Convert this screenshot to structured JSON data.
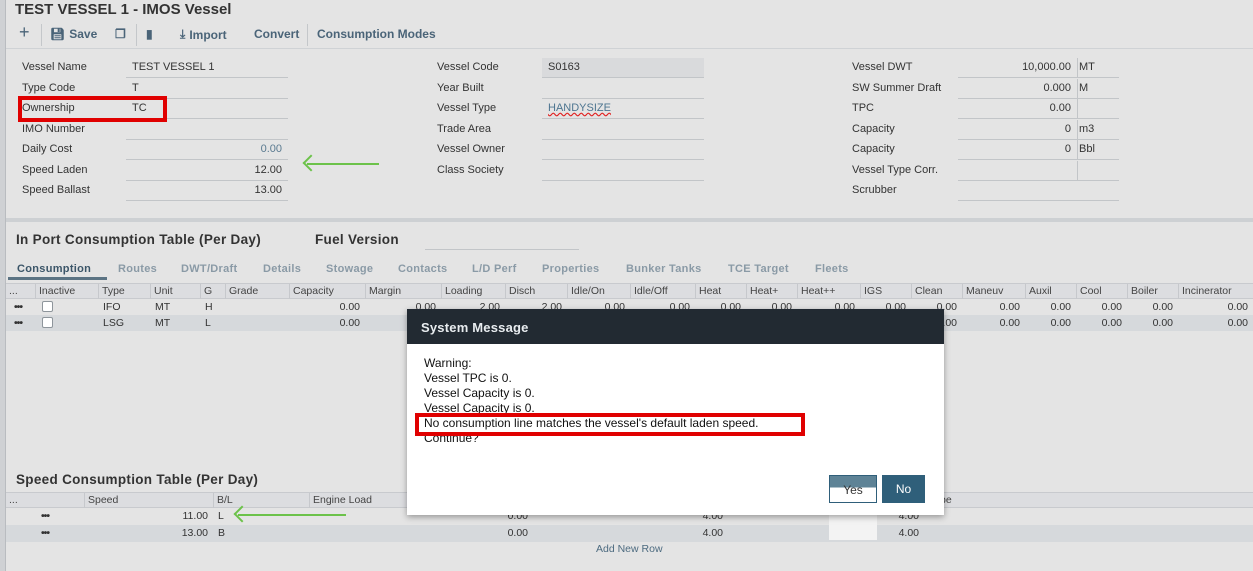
{
  "window": {
    "title": "TEST VESSEL 1 - IMOS Vessel"
  },
  "toolbar": {
    "add_icon": "plus-icon",
    "save": "Save",
    "copy_icon": "copy-icon",
    "delete_icon": "trash-icon",
    "import": "Import",
    "convert": "Convert",
    "consumption_modes": "Consumption Modes"
  },
  "form": {
    "col1": [
      {
        "label": "Vessel Name",
        "value": "TEST VESSEL 1"
      },
      {
        "label": "Type Code",
        "value": "T"
      },
      {
        "label": "Ownership",
        "value": "TC"
      },
      {
        "label": "IMO Number",
        "value": ""
      },
      {
        "label": "Daily Cost",
        "value": "0.00"
      },
      {
        "label": "Speed Laden",
        "value": "12.00"
      },
      {
        "label": "Speed Ballast",
        "value": "13.00"
      }
    ],
    "col2": [
      {
        "label": "Vessel Code",
        "value": "S0163"
      },
      {
        "label": "Year Built",
        "value": ""
      },
      {
        "label": "Vessel Type",
        "value": "HANDYSIZE"
      },
      {
        "label": "Trade Area",
        "value": ""
      },
      {
        "label": "Vessel Owner",
        "value": ""
      },
      {
        "label": "Class Society",
        "value": ""
      }
    ],
    "col3": [
      {
        "label": "Vessel DWT",
        "value": "10,000.00",
        "unit": "MT"
      },
      {
        "label": "SW Summer Draft",
        "value": "0.000",
        "unit": "M"
      },
      {
        "label": "TPC",
        "value": "0.00",
        "unit": ""
      },
      {
        "label": "Capacity",
        "value": "0",
        "unit": "m3"
      },
      {
        "label": "Capacity",
        "value": "0",
        "unit": "Bbl"
      },
      {
        "label": "Vessel Type Corr.",
        "value": "",
        "unit": ""
      },
      {
        "label": "Scrubber",
        "value": ""
      }
    ]
  },
  "inport": {
    "title": "In Port Consumption Table (Per Day)",
    "fuel_version_label": "Fuel Version",
    "fuel_version_value": "",
    "tabs": [
      "Consumption",
      "Routes",
      "DWT/Draft",
      "Details",
      "Stowage",
      "Contacts",
      "L/D Perf",
      "Properties",
      "Bunker Tanks",
      "TCE Target",
      "Fleets"
    ],
    "active_tab": "Consumption",
    "columns": [
      "...",
      "Inactive",
      "Type",
      "Unit",
      "G",
      "Grade",
      "Capacity",
      "Margin",
      "Loading",
      "Disch",
      "Idle/On",
      "Idle/Off",
      "Heat",
      "Heat+",
      "Heat++",
      "IGS",
      "Clean",
      "Maneuv",
      "Auxil",
      "Cool",
      "Boiler",
      "Incinerator"
    ],
    "rows": [
      {
        "type": "IFO",
        "unit": "MT",
        "g": "H",
        "grade": "",
        "inactive": false,
        "values": [
          "0.00",
          "0.00",
          "2.00",
          "2.00",
          "0.00",
          "0.00",
          "0.00",
          "0.00",
          "0.00",
          "0.00",
          "0.00",
          "0.00",
          "0.00",
          "0.00",
          "0.00",
          "0.00"
        ]
      },
      {
        "type": "LSG",
        "unit": "MT",
        "g": "L",
        "grade": "",
        "inactive": false,
        "values": [
          "0.00",
          "",
          "",
          "",
          "",
          "",
          "",
          "",
          "",
          "",
          "0.00",
          "0.00",
          "0.00",
          "0.00",
          "0.00",
          "0.00"
        ]
      }
    ]
  },
  "speed": {
    "title": "Speed Consumption Table (Per Day)",
    "columns": [
      "...",
      "Speed",
      "B/L",
      "Engine Load",
      "",
      "",
      "pe"
    ],
    "rows": [
      {
        "speed": "11.00",
        "bl": "L",
        "c1": "0.00",
        "c2": "4.00",
        "c3": "4.00"
      },
      {
        "speed": "13.00",
        "bl": "B",
        "c1": "0.00",
        "c2": "4.00",
        "c3": "4.00"
      }
    ],
    "add_row": "Add New Row"
  },
  "dialog": {
    "title": "System Message",
    "lines": [
      "Warning:",
      "Vessel TPC is 0.",
      "Vessel Capacity is 0.",
      "Vessel Capacity is 0.",
      "No consumption line matches the vessel's default laden speed.",
      "Continue?"
    ],
    "yes": "Yes",
    "no": "No"
  },
  "colors": {
    "highlight": "#e00000",
    "arrow": "#6cc24a",
    "dialog_header": "#222a32",
    "primary_button": "#2f5f7a"
  }
}
